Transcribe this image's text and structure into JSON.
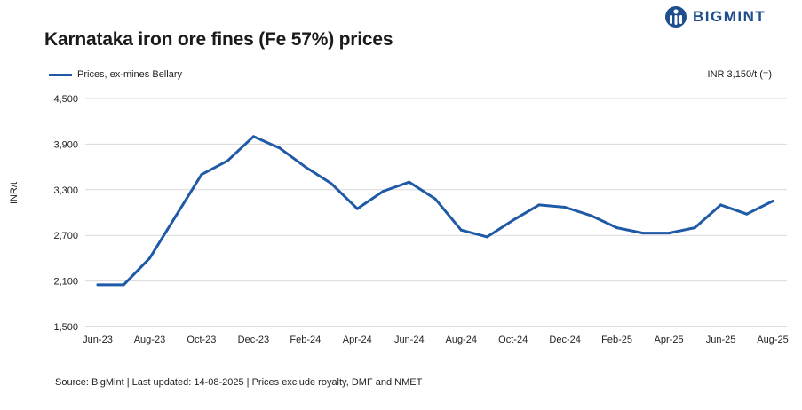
{
  "title": "Karnataka iron ore fines (Fe 57%) prices",
  "brand": {
    "name": "BIGMINT",
    "color": "#1f4e8c"
  },
  "note": "INR 3,150/t (=)",
  "source": "Source: BigMint | Last updated: 14-08-2025 | Prices exclude royalty, DMF and NMET",
  "chart_data": {
    "type": "line",
    "title": "Karnataka iron ore fines (Fe 57%) prices",
    "ylabel": "INR/t",
    "xlabel": "",
    "ylim": [
      1500,
      4500
    ],
    "yticks": [
      1500,
      2100,
      2700,
      3300,
      3900,
      4500
    ],
    "ytick_labels": [
      "1,500",
      "2,100",
      "2,700",
      "3,300",
      "3,900",
      "4,500"
    ],
    "xtick_labels": [
      "Jun-23",
      "Aug-23",
      "Oct-23",
      "Dec-23",
      "Feb-24",
      "Apr-24",
      "Jun-24",
      "Aug-24",
      "Oct-24",
      "Dec-24",
      "Feb-25",
      "Apr-25",
      "Jun-25",
      "Aug-25"
    ],
    "x": [
      "Jun-23",
      "Jul-23",
      "Aug-23",
      "Sep-23",
      "Oct-23",
      "Nov-23",
      "Dec-23",
      "Jan-24",
      "Feb-24",
      "Mar-24",
      "Apr-24",
      "May-24",
      "Jun-24",
      "Jul-24",
      "Aug-24",
      "Sep-24",
      "Oct-24",
      "Nov-24",
      "Dec-24",
      "Jan-25",
      "Feb-25",
      "Mar-25",
      "Apr-25",
      "May-25",
      "Jun-25",
      "Jul-25",
      "Aug-25"
    ],
    "series": [
      {
        "name": "Prices, ex-mines Bellary",
        "color": "#1f5aa6",
        "values": [
          2050,
          2050,
          2400,
          2950,
          3500,
          3680,
          4000,
          3850,
          3600,
          3380,
          3050,
          3280,
          3400,
          3180,
          2770,
          2680,
          2900,
          3100,
          3070,
          2960,
          2800,
          2730,
          2730,
          2800,
          3100,
          2980,
          3150
        ]
      }
    ],
    "grid": true,
    "legend": "top-left"
  }
}
